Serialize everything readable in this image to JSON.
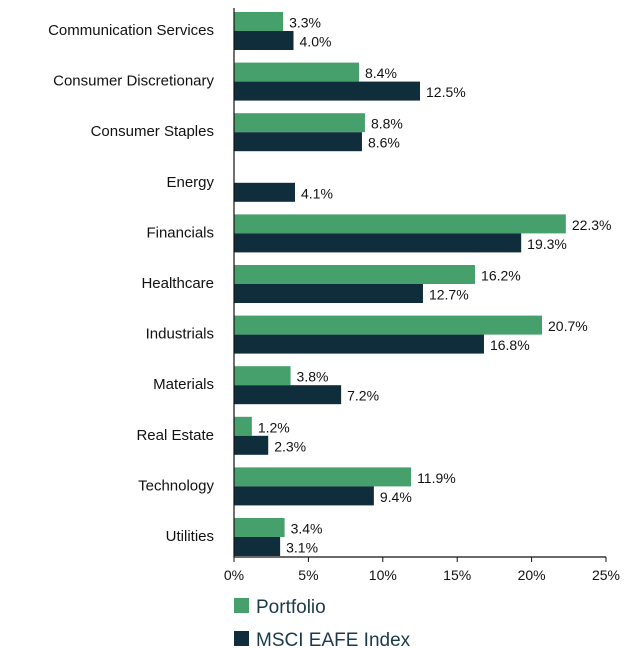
{
  "chart_data": {
    "type": "bar",
    "orientation": "horizontal",
    "title": "",
    "xlabel": "",
    "ylabel": "",
    "categories": [
      "Communication Services",
      "Consumer Discretionary",
      "Consumer Staples",
      "Energy",
      "Financials",
      "Healthcare",
      "Industrials",
      "Materials",
      "Real Estate",
      "Technology",
      "Utilities"
    ],
    "series": [
      {
        "name": "Portfolio",
        "color": "#46a06b",
        "values": [
          3.3,
          8.4,
          8.8,
          null,
          22.3,
          16.2,
          20.7,
          3.8,
          1.2,
          11.9,
          3.4
        ],
        "labels": [
          "3.3%",
          "8.4%",
          "8.8%",
          "",
          "22.3%",
          "16.2%",
          "20.7%",
          "3.8%",
          "1.2%",
          "11.9%",
          "3.4%"
        ]
      },
      {
        "name": "MSCI EAFE Index",
        "color": "#0f2d3b",
        "values": [
          4.0,
          12.5,
          8.6,
          4.1,
          19.3,
          12.7,
          16.8,
          7.2,
          2.3,
          9.4,
          3.1
        ],
        "labels": [
          "4.0%",
          "12.5%",
          "8.6%",
          "4.1%",
          "19.3%",
          "12.7%",
          "16.8%",
          "7.2%",
          "2.3%",
          "9.4%",
          "3.1%"
        ]
      }
    ],
    "xlim": [
      0,
      25
    ],
    "xticks": [
      0,
      5,
      10,
      15,
      20,
      25
    ],
    "xtick_labels": [
      "0%",
      "5%",
      "10%",
      "15%",
      "20%",
      "25%"
    ],
    "grid": false,
    "legend_position": "bottom"
  }
}
